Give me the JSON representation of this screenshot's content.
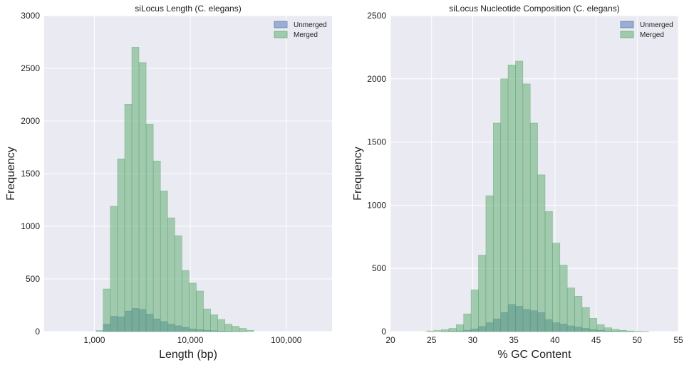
{
  "chart_data": [
    {
      "type": "bar",
      "title": "siLocus Length (C. elegans)",
      "xlabel": "Length (bp)",
      "ylabel": "Frequency",
      "xscale": "log",
      "xlim": [
        300,
        300000
      ],
      "ylim": [
        0,
        3000
      ],
      "xticks": [
        1000,
        10000,
        100000
      ],
      "xtick_labels": [
        "1,000",
        "10,000",
        "100,000"
      ],
      "yticks": [
        0,
        500,
        1000,
        1500,
        2000,
        2500,
        3000
      ],
      "ytick_labels": [
        "0",
        "500",
        "1000",
        "1500",
        "2000",
        "2500",
        "3000"
      ],
      "grid": true,
      "legend_position": "top-right",
      "bin_edges": [
        1041,
        1236,
        1467,
        1743,
        2070,
        2458,
        2918,
        3466,
        4116,
        4888,
        5806,
        6895,
        8188,
        9724,
        11548,
        13715,
        16287,
        19343,
        22972,
        27282,
        32400,
        38478,
        45697
      ],
      "series": [
        {
          "name": "Unmerged",
          "color": "#4c72b0",
          "values": [
            0,
            70,
            145,
            140,
            195,
            220,
            210,
            165,
            120,
            95,
            70,
            55,
            40,
            25,
            18,
            12,
            8,
            5,
            3,
            2,
            1,
            0
          ]
        },
        {
          "name": "Merged",
          "color": "#55a868",
          "values": [
            10,
            405,
            1190,
            1640,
            2160,
            2700,
            2555,
            1970,
            1620,
            1335,
            1080,
            910,
            580,
            460,
            385,
            215,
            160,
            115,
            70,
            50,
            30,
            12
          ]
        }
      ]
    },
    {
      "type": "bar",
      "title": "siLocus Nucleotide Composition (C. elegans)",
      "xlabel": "% GC Content",
      "ylabel": "Frequency",
      "xscale": "linear",
      "xlim": [
        20,
        55
      ],
      "ylim": [
        0,
        2500
      ],
      "xticks": [
        20,
        25,
        30,
        35,
        40,
        45,
        50,
        55
      ],
      "xtick_labels": [
        "20",
        "25",
        "30",
        "35",
        "40",
        "45",
        "50",
        "55"
      ],
      "yticks": [
        0,
        500,
        1000,
        1500,
        2000,
        2500
      ],
      "ytick_labels": [
        "0",
        "500",
        "1000",
        "1500",
        "2000",
        "2500"
      ],
      "grid": true,
      "legend_position": "top-right",
      "bin_edges": [
        24.4,
        25.3,
        26.2,
        27.1,
        28.0,
        28.9,
        29.8,
        30.7,
        31.6,
        32.5,
        33.4,
        34.3,
        35.2,
        36.1,
        37.0,
        37.9,
        38.8,
        39.7,
        40.6,
        41.5,
        42.4,
        43.3,
        44.2,
        45.1,
        46.0,
        46.9,
        47.8,
        48.7,
        49.6,
        50.5,
        51.4
      ],
      "series": [
        {
          "name": "Unmerged",
          "color": "#4c72b0",
          "values": [
            0,
            0,
            1,
            3,
            5,
            10,
            20,
            40,
            70,
            100,
            150,
            215,
            200,
            175,
            165,
            150,
            95,
            70,
            60,
            45,
            35,
            25,
            15,
            10,
            5,
            3,
            2,
            1,
            0,
            0
          ]
        },
        {
          "name": "Merged",
          "color": "#55a868",
          "values": [
            5,
            8,
            15,
            25,
            55,
            140,
            330,
            605,
            1075,
            1650,
            2000,
            2110,
            2140,
            1960,
            1650,
            1240,
            950,
            700,
            525,
            345,
            280,
            190,
            105,
            55,
            30,
            18,
            10,
            5,
            3,
            2
          ]
        }
      ]
    }
  ]
}
